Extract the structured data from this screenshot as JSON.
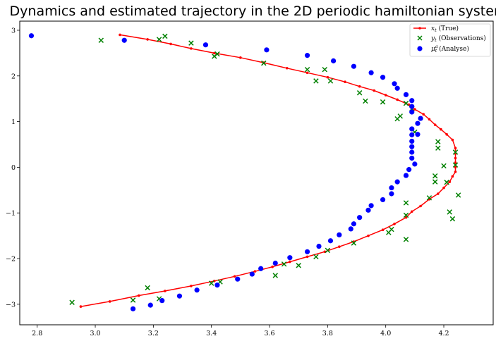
{
  "chart_data": {
    "type": "scatter",
    "title": "Dynamics and estimated trajectory in the 2D periodic hamiltonian system",
    "xlabel": "",
    "ylabel": "",
    "xlim": [
      2.74,
      4.37
    ],
    "ylim": [
      -3.45,
      3.2
    ],
    "xticks": [
      2.8,
      3.0,
      3.2,
      3.4,
      3.6,
      3.8,
      4.0,
      4.2
    ],
    "xtick_labels": [
      "2.8",
      "3.0",
      "3.2",
      "3.4",
      "3.6",
      "3.8",
      "4.0",
      "4.2"
    ],
    "yticks": [
      -3,
      -2,
      -1,
      0,
      1,
      2,
      3
    ],
    "ytick_labels": [
      "−3",
      "−2",
      "−1",
      "0",
      "1",
      "2",
      "3"
    ],
    "grid": false,
    "legend_position": "top-right",
    "series": [
      {
        "name": "x_t (True)",
        "legend_math": "x",
        "legend_sub": "t",
        "legend_rest": " (True)",
        "kind": "line",
        "color": "#ff0000",
        "points": [
          [
            3.085,
            2.9
          ],
          [
            3.18,
            2.8
          ],
          [
            3.26,
            2.7
          ],
          [
            3.33,
            2.6
          ],
          [
            3.41,
            2.5
          ],
          [
            3.5,
            2.4
          ],
          [
            3.58,
            2.29
          ],
          [
            3.66,
            2.17
          ],
          [
            3.73,
            2.07
          ],
          [
            3.8,
            1.97
          ],
          [
            3.86,
            1.87
          ],
          [
            3.91,
            1.77
          ],
          [
            3.96,
            1.68
          ],
          [
            4.0,
            1.58
          ],
          [
            4.04,
            1.48
          ],
          [
            4.08,
            1.37
          ],
          [
            4.1,
            1.27
          ],
          [
            4.13,
            1.16
          ],
          [
            4.15,
            1.05
          ],
          [
            4.17,
            0.93
          ],
          [
            4.19,
            0.83
          ],
          [
            4.21,
            0.72
          ],
          [
            4.23,
            0.6
          ],
          [
            4.24,
            0.42
          ],
          [
            4.24,
            0.3
          ],
          [
            4.24,
            0.2
          ],
          [
            4.24,
            0.1
          ],
          [
            4.24,
            0.0
          ],
          [
            4.24,
            -0.1
          ],
          [
            4.23,
            -0.2
          ],
          [
            4.22,
            -0.32
          ],
          [
            4.2,
            -0.45
          ],
          [
            4.18,
            -0.58
          ],
          [
            4.15,
            -0.7
          ],
          [
            4.12,
            -0.85
          ],
          [
            4.09,
            -0.97
          ],
          [
            4.07,
            -1.1
          ],
          [
            4.03,
            -1.24
          ],
          [
            3.99,
            -1.37
          ],
          [
            3.94,
            -1.5
          ],
          [
            3.89,
            -1.63
          ],
          [
            3.84,
            -1.74
          ],
          [
            3.79,
            -1.85
          ],
          [
            3.73,
            -1.96
          ],
          [
            3.67,
            -2.07
          ],
          [
            3.61,
            -2.18
          ],
          [
            3.55,
            -2.28
          ],
          [
            3.48,
            -2.39
          ],
          [
            3.41,
            -2.49
          ],
          [
            3.33,
            -2.6
          ],
          [
            3.24,
            -2.71
          ],
          [
            3.15,
            -2.81
          ],
          [
            3.05,
            -2.94
          ],
          [
            2.95,
            -3.05
          ]
        ]
      },
      {
        "name": "y_t (Observations)",
        "legend_math": "y",
        "legend_sub": "t",
        "legend_rest": " (Observations)",
        "kind": "cross",
        "color": "#008000",
        "points": [
          [
            3.02,
            2.78
          ],
          [
            3.22,
            2.8
          ],
          [
            3.24,
            2.87
          ],
          [
            3.33,
            2.72
          ],
          [
            3.41,
            2.43
          ],
          [
            3.42,
            2.48
          ],
          [
            3.58,
            2.28
          ],
          [
            3.73,
            2.14
          ],
          [
            3.76,
            1.89
          ],
          [
            3.79,
            2.14
          ],
          [
            3.81,
            1.89
          ],
          [
            3.91,
            1.63
          ],
          [
            3.93,
            1.45
          ],
          [
            3.99,
            1.43
          ],
          [
            4.04,
            1.06
          ],
          [
            4.05,
            1.12
          ],
          [
            4.07,
            1.4
          ],
          [
            4.09,
            1.28
          ],
          [
            4.1,
            0.77
          ],
          [
            4.18,
            0.56
          ],
          [
            4.18,
            0.42
          ],
          [
            4.2,
            0.03
          ],
          [
            4.24,
            0.33
          ],
          [
            4.24,
            0.05
          ],
          [
            4.17,
            -0.19
          ],
          [
            4.17,
            -0.32
          ],
          [
            4.21,
            -0.33
          ],
          [
            4.25,
            -0.61
          ],
          [
            4.15,
            -0.67
          ],
          [
            4.22,
            -0.98
          ],
          [
            4.23,
            -1.13
          ],
          [
            4.07,
            -0.78
          ],
          [
            4.07,
            -1.05
          ],
          [
            4.02,
            -1.36
          ],
          [
            4.01,
            -1.43
          ],
          [
            4.07,
            -1.58
          ],
          [
            3.89,
            -1.66
          ],
          [
            3.8,
            -1.82
          ],
          [
            3.76,
            -1.96
          ],
          [
            3.7,
            -2.15
          ],
          [
            3.65,
            -2.12
          ],
          [
            3.62,
            -2.37
          ],
          [
            3.43,
            -2.51
          ],
          [
            3.4,
            -2.54
          ],
          [
            3.22,
            -2.88
          ],
          [
            3.18,
            -2.64
          ],
          [
            3.13,
            -2.91
          ],
          [
            2.92,
            -2.96
          ]
        ]
      },
      {
        "name": "μ_t^a (Analyse)",
        "legend_math": "μ",
        "legend_sub": "t",
        "legend_sup": "a",
        "legend_rest": " (Analyse)",
        "kind": "dot",
        "color": "#0000ff",
        "points": [
          [
            2.78,
            2.88
          ],
          [
            3.1,
            2.78
          ],
          [
            3.38,
            2.68
          ],
          [
            3.59,
            2.57
          ],
          [
            3.73,
            2.45
          ],
          [
            3.82,
            2.33
          ],
          [
            3.89,
            2.21
          ],
          [
            3.95,
            2.07
          ],
          [
            3.99,
            1.97
          ],
          [
            4.03,
            1.83
          ],
          [
            4.04,
            1.73
          ],
          [
            4.07,
            1.59
          ],
          [
            4.09,
            1.46
          ],
          [
            4.09,
            1.33
          ],
          [
            4.09,
            1.21
          ],
          [
            4.12,
            1.07
          ],
          [
            4.11,
            0.96
          ],
          [
            4.09,
            0.84
          ],
          [
            4.11,
            0.72
          ],
          [
            4.09,
            0.71
          ],
          [
            4.09,
            0.57
          ],
          [
            4.09,
            0.45
          ],
          [
            4.09,
            0.33
          ],
          [
            4.09,
            0.2
          ],
          [
            4.1,
            0.07
          ],
          [
            4.08,
            -0.05
          ],
          [
            4.07,
            -0.18
          ],
          [
            4.04,
            -0.32
          ],
          [
            4.02,
            -0.45
          ],
          [
            4.02,
            -0.58
          ],
          [
            3.99,
            -0.71
          ],
          [
            3.95,
            -0.84
          ],
          [
            3.94,
            -0.94
          ],
          [
            3.91,
            -1.1
          ],
          [
            3.89,
            -1.24
          ],
          [
            3.88,
            -1.35
          ],
          [
            3.84,
            -1.48
          ],
          [
            3.81,
            -1.61
          ],
          [
            3.77,
            -1.73
          ],
          [
            3.73,
            -1.85
          ],
          [
            3.67,
            -1.98
          ],
          [
            3.62,
            -2.1
          ],
          [
            3.57,
            -2.22
          ],
          [
            3.54,
            -2.34
          ],
          [
            3.49,
            -2.45
          ],
          [
            3.42,
            -2.58
          ],
          [
            3.35,
            -2.69
          ],
          [
            3.29,
            -2.82
          ],
          [
            3.23,
            -2.92
          ],
          [
            3.19,
            -3.02
          ],
          [
            3.13,
            -3.1
          ]
        ]
      }
    ]
  }
}
